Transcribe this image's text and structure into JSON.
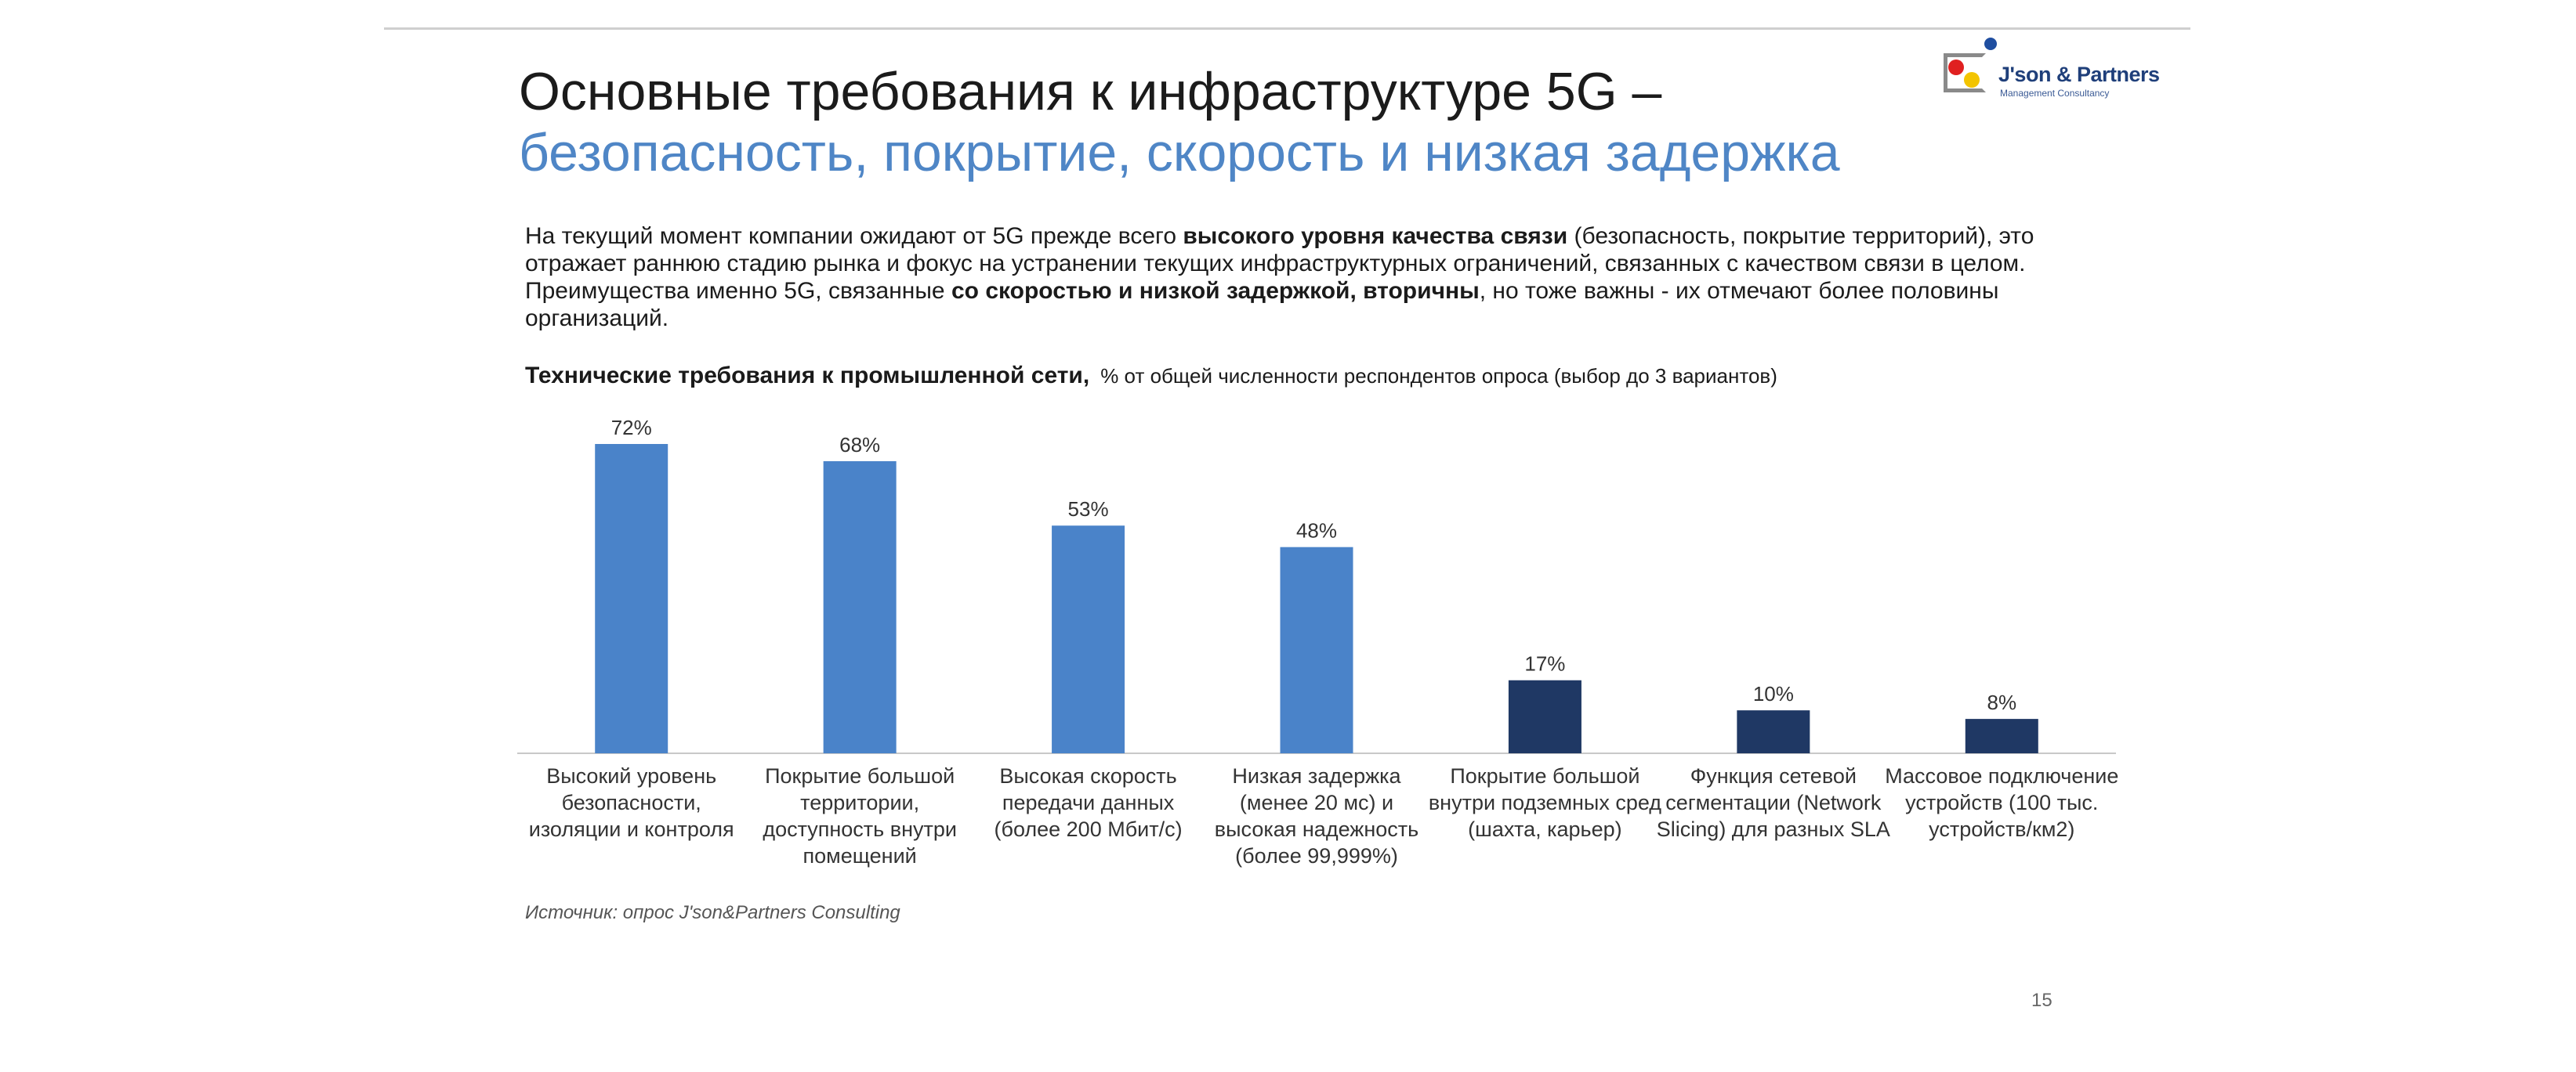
{
  "slide": {
    "title_line1": "Основные требования к инфраструктуре 5G –",
    "title_line2": "безопасность, покрытие, скорость и низкая задержка",
    "page_number": "15"
  },
  "logo": {
    "name": "J'son & Partners",
    "subtitle": "Management Consultancy"
  },
  "intro": {
    "p1": "На текущий момент компании ожидают от 5G прежде всего ",
    "b1": "высокого уровня качества связи",
    "p2": " (безопасность, покрытие территорий), это отражает раннюю стадию рынка и фокус на устранении текущих инфраструктурных ограничений, связанных с качеством связи в целом. Преимущества именно 5G, связанные ",
    "b2": "со скоростью и низкой задержкой, вторичны",
    "p3": ", но тоже важны - их отмечают более половины организаций."
  },
  "source": "Источник: опрос J'son&Partners Consulting",
  "colors": {
    "title_accent": "#4f86c6",
    "bar_light": "#4a83c9",
    "bar_dark": "#1f3864"
  },
  "chart_data": {
    "type": "bar",
    "title": "Технические требования к промышленной сети,",
    "subtitle": "% от общей численности респондентов опроса (выбор до 3 вариантов)",
    "categories": [
      "Высокий уровень безопасности, изоляции и контроля",
      "Покрытие большой территории, доступность внутри помещений",
      "Высокая скорость передачи данных (более 200 Мбит/с)",
      "Низкая задержка (менее 20 мс) и высокая надежность (более 99,999%)",
      "Покрытие большой внутри подземных сред (шахта, карьер)",
      "Функция сетевой сегментации (Network Slicing) для разных SLA",
      "Массовое подключение устройств (100 тыс. устройств/км2)"
    ],
    "values": [
      72,
      68,
      53,
      48,
      17,
      10,
      8
    ],
    "value_labels": [
      "72%",
      "68%",
      "53%",
      "48%",
      "17%",
      "10%",
      "8%"
    ],
    "bar_colors": [
      "#4a83c9",
      "#4a83c9",
      "#4a83c9",
      "#4a83c9",
      "#1f3864",
      "#1f3864",
      "#1f3864"
    ],
    "ylim": [
      0,
      72
    ],
    "grid": false,
    "legend": "none"
  }
}
